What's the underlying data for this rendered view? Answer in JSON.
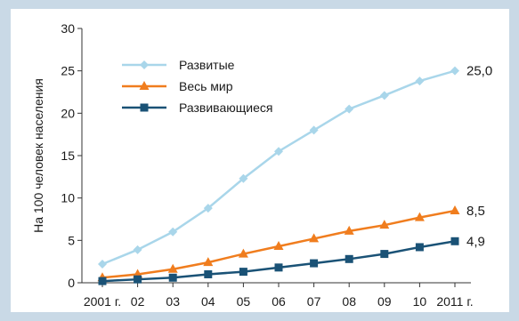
{
  "chart_data": {
    "type": "line",
    "ylabel": "На 100 человек населения",
    "ylim": [
      0,
      30
    ],
    "y_ticks": [
      "0",
      "5",
      "10",
      "15",
      "20",
      "25",
      "30"
    ],
    "x": [
      "2001 г.",
      "02",
      "03",
      "04",
      "05",
      "06",
      "07",
      "08",
      "09",
      "10",
      "2011 г."
    ],
    "grid": false,
    "legend_position": "top-left",
    "series": [
      {
        "name": "Развитые",
        "color": "#a9d6ea",
        "marker": "diamond",
        "values": [
          2.2,
          3.9,
          6.0,
          8.8,
          12.3,
          15.5,
          18.0,
          20.5,
          22.1,
          23.8,
          25.0
        ],
        "end_label": "25,0"
      },
      {
        "name": "Весь мир",
        "color": "#f07d1e",
        "marker": "triangle",
        "values": [
          0.6,
          1.0,
          1.6,
          2.4,
          3.4,
          4.3,
          5.2,
          6.1,
          6.8,
          7.7,
          8.5
        ],
        "end_label": "8,5"
      },
      {
        "name": "Развивающиеся",
        "color": "#1a5276",
        "marker": "square",
        "values": [
          0.2,
          0.4,
          0.6,
          1.0,
          1.3,
          1.8,
          2.3,
          2.8,
          3.4,
          4.2,
          4.9
        ],
        "end_label": "4,9"
      }
    ]
  }
}
